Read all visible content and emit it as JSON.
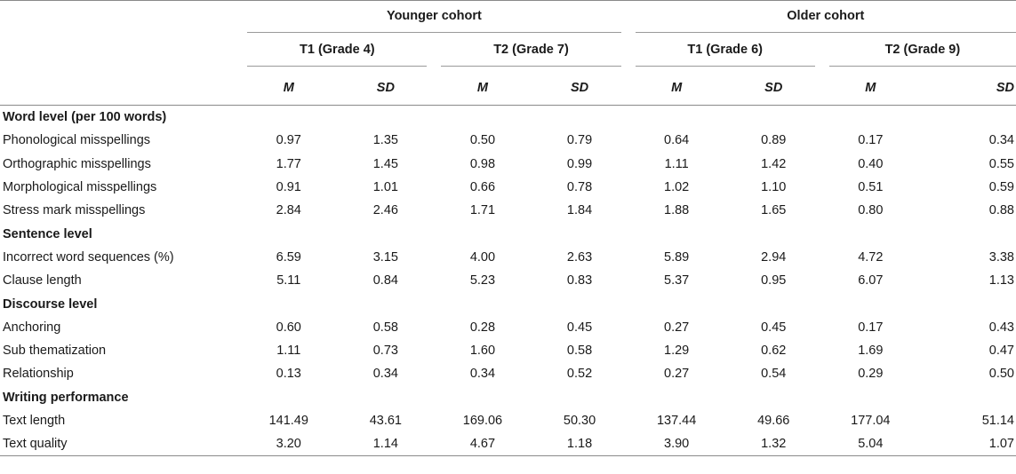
{
  "header": {
    "cohorts": [
      "Younger cohort",
      "Older cohort"
    ],
    "timepoints": [
      "T1 (Grade 4)",
      "T2 (Grade 7)",
      "T1 (Grade 6)",
      "T2 (Grade 9)"
    ],
    "stats": [
      "M",
      "SD",
      "M",
      "SD",
      "M",
      "SD",
      "M",
      "SD"
    ]
  },
  "sections": [
    {
      "title": "Word level (per 100 words)",
      "rows": [
        {
          "label": "Phonological misspellings",
          "values": [
            "0.97",
            "1.35",
            "0.50",
            "0.79",
            "0.64",
            "0.89",
            "0.17",
            "0.34"
          ]
        },
        {
          "label": "Orthographic misspellings",
          "values": [
            "1.77",
            "1.45",
            "0.98",
            "0.99",
            "1.11",
            "1.42",
            "0.40",
            "0.55"
          ]
        },
        {
          "label": "Morphological misspellings",
          "values": [
            "0.91",
            "1.01",
            "0.66",
            "0.78",
            "1.02",
            "1.10",
            "0.51",
            "0.59"
          ]
        },
        {
          "label": "Stress mark misspellings",
          "values": [
            "2.84",
            "2.46",
            "1.71",
            "1.84",
            "1.88",
            "1.65",
            "0.80",
            "0.88"
          ]
        }
      ]
    },
    {
      "title": "Sentence level",
      "rows": [
        {
          "label": "Incorrect word sequences (%)",
          "values": [
            "6.59",
            "3.15",
            "4.00",
            "2.63",
            "5.89",
            "2.94",
            "4.72",
            "3.38"
          ]
        },
        {
          "label": "Clause length",
          "values": [
            "5.11",
            "0.84",
            "5.23",
            "0.83",
            "5.37",
            "0.95",
            "6.07",
            "1.13"
          ]
        }
      ]
    },
    {
      "title": "Discourse level",
      "rows": [
        {
          "label": "Anchoring",
          "values": [
            "0.60",
            "0.58",
            "0.28",
            "0.45",
            "0.27",
            "0.45",
            "0.17",
            "0.43"
          ]
        },
        {
          "label": "Sub thematization",
          "values": [
            "1.11",
            "0.73",
            "1.60",
            "0.58",
            "1.29",
            "0.62",
            "1.69",
            "0.47"
          ]
        },
        {
          "label": "Relationship",
          "values": [
            "0.13",
            "0.34",
            "0.34",
            "0.52",
            "0.27",
            "0.54",
            "0.29",
            "0.50"
          ]
        }
      ]
    },
    {
      "title": "Writing performance",
      "rows": [
        {
          "label": "Text length",
          "values": [
            "141.49",
            "43.61",
            "169.06",
            "50.30",
            "137.44",
            "49.66",
            "177.04",
            "51.14"
          ]
        },
        {
          "label": "Text quality",
          "values": [
            "3.20",
            "1.14",
            "4.67",
            "1.18",
            "3.90",
            "1.32",
            "5.04",
            "1.07"
          ]
        }
      ]
    }
  ]
}
